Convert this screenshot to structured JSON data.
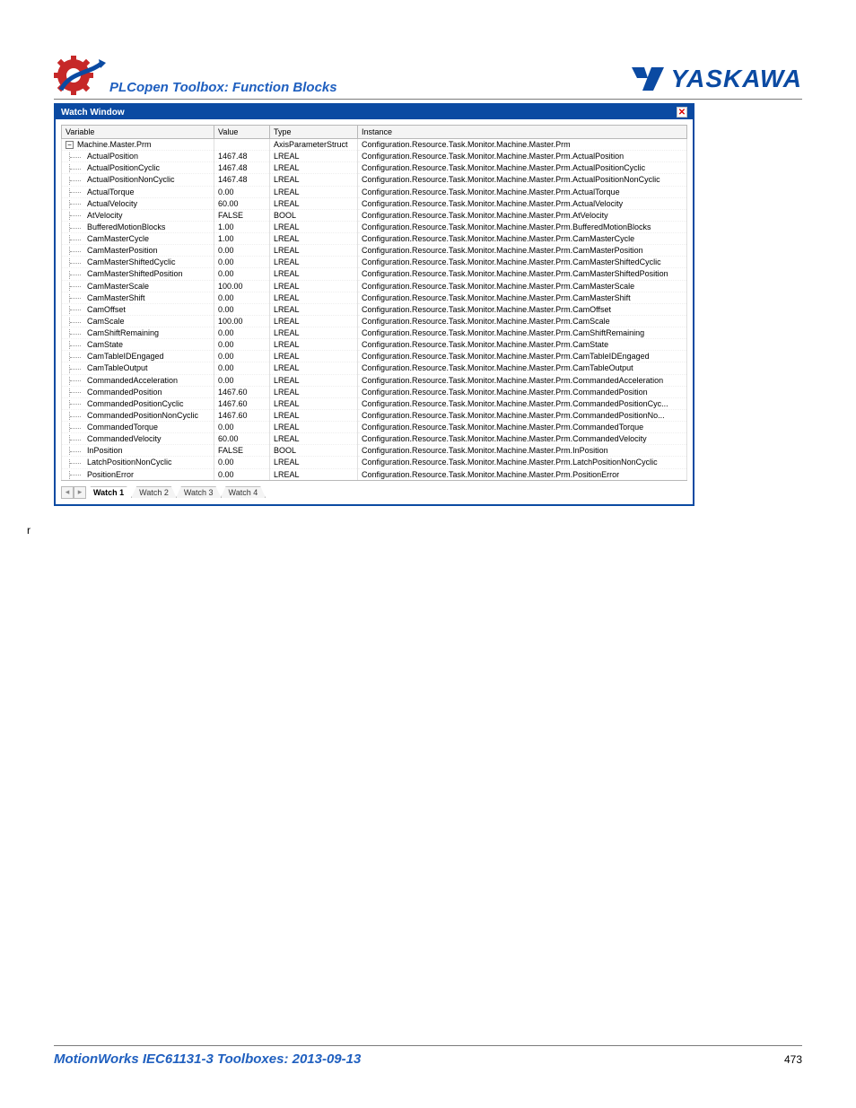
{
  "header": {
    "doc_title": "PLCopen Toolbox: Function Blocks",
    "brand_text": "YASKAWA",
    "window_title": "Watch Window"
  },
  "table": {
    "columns": [
      "Variable",
      "Value",
      "Type",
      "Instance"
    ],
    "root": {
      "variable": "Machine.Master.Prm",
      "value": "",
      "type": "AxisParameterStruct",
      "instance": "Configuration.Resource.Task.Monitor.Machine.Master.Prm"
    },
    "rows": [
      {
        "variable": "ActualPosition",
        "value": "1467.48",
        "type": "LREAL",
        "instance": "Configuration.Resource.Task.Monitor.Machine.Master.Prm.ActualPosition"
      },
      {
        "variable": "ActualPositionCyclic",
        "value": "1467.48",
        "type": "LREAL",
        "instance": "Configuration.Resource.Task.Monitor.Machine.Master.Prm.ActualPositionCyclic"
      },
      {
        "variable": "ActualPositionNonCyclic",
        "value": "1467.48",
        "type": "LREAL",
        "instance": "Configuration.Resource.Task.Monitor.Machine.Master.Prm.ActualPositionNonCyclic"
      },
      {
        "variable": "ActualTorque",
        "value": "0.00",
        "type": "LREAL",
        "instance": "Configuration.Resource.Task.Monitor.Machine.Master.Prm.ActualTorque"
      },
      {
        "variable": "ActualVelocity",
        "value": "60.00",
        "type": "LREAL",
        "instance": "Configuration.Resource.Task.Monitor.Machine.Master.Prm.ActualVelocity"
      },
      {
        "variable": "AtVelocity",
        "value": "FALSE",
        "type": "BOOL",
        "instance": "Configuration.Resource.Task.Monitor.Machine.Master.Prm.AtVelocity"
      },
      {
        "variable": "BufferedMotionBlocks",
        "value": "1.00",
        "type": "LREAL",
        "instance": "Configuration.Resource.Task.Monitor.Machine.Master.Prm.BufferedMotionBlocks"
      },
      {
        "variable": "CamMasterCycle",
        "value": "1.00",
        "type": "LREAL",
        "instance": "Configuration.Resource.Task.Monitor.Machine.Master.Prm.CamMasterCycle"
      },
      {
        "variable": "CamMasterPosition",
        "value": "0.00",
        "type": "LREAL",
        "instance": "Configuration.Resource.Task.Monitor.Machine.Master.Prm.CamMasterPosition"
      },
      {
        "variable": "CamMasterShiftedCyclic",
        "value": "0.00",
        "type": "LREAL",
        "instance": "Configuration.Resource.Task.Monitor.Machine.Master.Prm.CamMasterShiftedCyclic"
      },
      {
        "variable": "CamMasterShiftedPosition",
        "value": "0.00",
        "type": "LREAL",
        "instance": "Configuration.Resource.Task.Monitor.Machine.Master.Prm.CamMasterShiftedPosition"
      },
      {
        "variable": "CamMasterScale",
        "value": "100.00",
        "type": "LREAL",
        "instance": "Configuration.Resource.Task.Monitor.Machine.Master.Prm.CamMasterScale"
      },
      {
        "variable": "CamMasterShift",
        "value": "0.00",
        "type": "LREAL",
        "instance": "Configuration.Resource.Task.Monitor.Machine.Master.Prm.CamMasterShift"
      },
      {
        "variable": "CamOffset",
        "value": "0.00",
        "type": "LREAL",
        "instance": "Configuration.Resource.Task.Monitor.Machine.Master.Prm.CamOffset"
      },
      {
        "variable": "CamScale",
        "value": "100.00",
        "type": "LREAL",
        "instance": "Configuration.Resource.Task.Monitor.Machine.Master.Prm.CamScale"
      },
      {
        "variable": "CamShiftRemaining",
        "value": "0.00",
        "type": "LREAL",
        "instance": "Configuration.Resource.Task.Monitor.Machine.Master.Prm.CamShiftRemaining"
      },
      {
        "variable": "CamState",
        "value": "0.00",
        "type": "LREAL",
        "instance": "Configuration.Resource.Task.Monitor.Machine.Master.Prm.CamState"
      },
      {
        "variable": "CamTableIDEngaged",
        "value": "0.00",
        "type": "LREAL",
        "instance": "Configuration.Resource.Task.Monitor.Machine.Master.Prm.CamTableIDEngaged"
      },
      {
        "variable": "CamTableOutput",
        "value": "0.00",
        "type": "LREAL",
        "instance": "Configuration.Resource.Task.Monitor.Machine.Master.Prm.CamTableOutput"
      },
      {
        "variable": "CommandedAcceleration",
        "value": "0.00",
        "type": "LREAL",
        "instance": "Configuration.Resource.Task.Monitor.Machine.Master.Prm.CommandedAcceleration"
      },
      {
        "variable": "CommandedPosition",
        "value": "1467.60",
        "type": "LREAL",
        "instance": "Configuration.Resource.Task.Monitor.Machine.Master.Prm.CommandedPosition"
      },
      {
        "variable": "CommandedPositionCyclic",
        "value": "1467.60",
        "type": "LREAL",
        "instance": "Configuration.Resource.Task.Monitor.Machine.Master.Prm.CommandedPositionCyc..."
      },
      {
        "variable": "CommandedPositionNonCyclic",
        "value": "1467.60",
        "type": "LREAL",
        "instance": "Configuration.Resource.Task.Monitor.Machine.Master.Prm.CommandedPositionNo..."
      },
      {
        "variable": "CommandedTorque",
        "value": "0.00",
        "type": "LREAL",
        "instance": "Configuration.Resource.Task.Monitor.Machine.Master.Prm.CommandedTorque"
      },
      {
        "variable": "CommandedVelocity",
        "value": "60.00",
        "type": "LREAL",
        "instance": "Configuration.Resource.Task.Monitor.Machine.Master.Prm.CommandedVelocity"
      },
      {
        "variable": "InPosition",
        "value": "FALSE",
        "type": "BOOL",
        "instance": "Configuration.Resource.Task.Monitor.Machine.Master.Prm.InPosition"
      },
      {
        "variable": "LatchPositionNonCyclic",
        "value": "0.00",
        "type": "LREAL",
        "instance": "Configuration.Resource.Task.Monitor.Machine.Master.Prm.LatchPositionNonCyclic"
      },
      {
        "variable": "PositionError",
        "value": "0.00",
        "type": "LREAL",
        "instance": "Configuration.Resource.Task.Monitor.Machine.Master.Prm.PositionError"
      }
    ]
  },
  "tabs": {
    "items": [
      "Watch 1",
      "Watch 2",
      "Watch 3",
      "Watch 4"
    ],
    "active_index": 0
  },
  "stray_text": "r",
  "footer": {
    "title": "MotionWorks IEC61131-3 Toolboxes: 2013-09-13",
    "page": "473"
  },
  "colors": {
    "brand_blue": "#0b4aa2",
    "title_blue": "#1f5fbf",
    "false_red": "#c00000",
    "border_gray": "#b8b8b8"
  }
}
